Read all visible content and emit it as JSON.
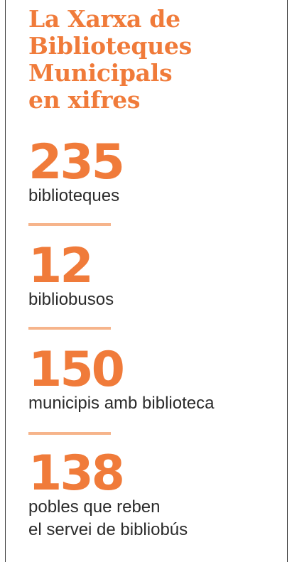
{
  "title": "La Xarxa de\nBiblioteques\nMunicipals\nen xifres",
  "stats": [
    {
      "number": "235",
      "label": "biblioteques"
    },
    {
      "number": "12",
      "label": "bibliobusos"
    },
    {
      "number": "150",
      "label": "municipis amb biblioteca"
    },
    {
      "number": "138",
      "label": "pobles que reben\nel servei de bibliobús"
    }
  ],
  "colors": {
    "accent": "#f07b3a",
    "divider": "#f6b48b",
    "text": "#2b2b2b",
    "rule": "#3a3a3a"
  }
}
